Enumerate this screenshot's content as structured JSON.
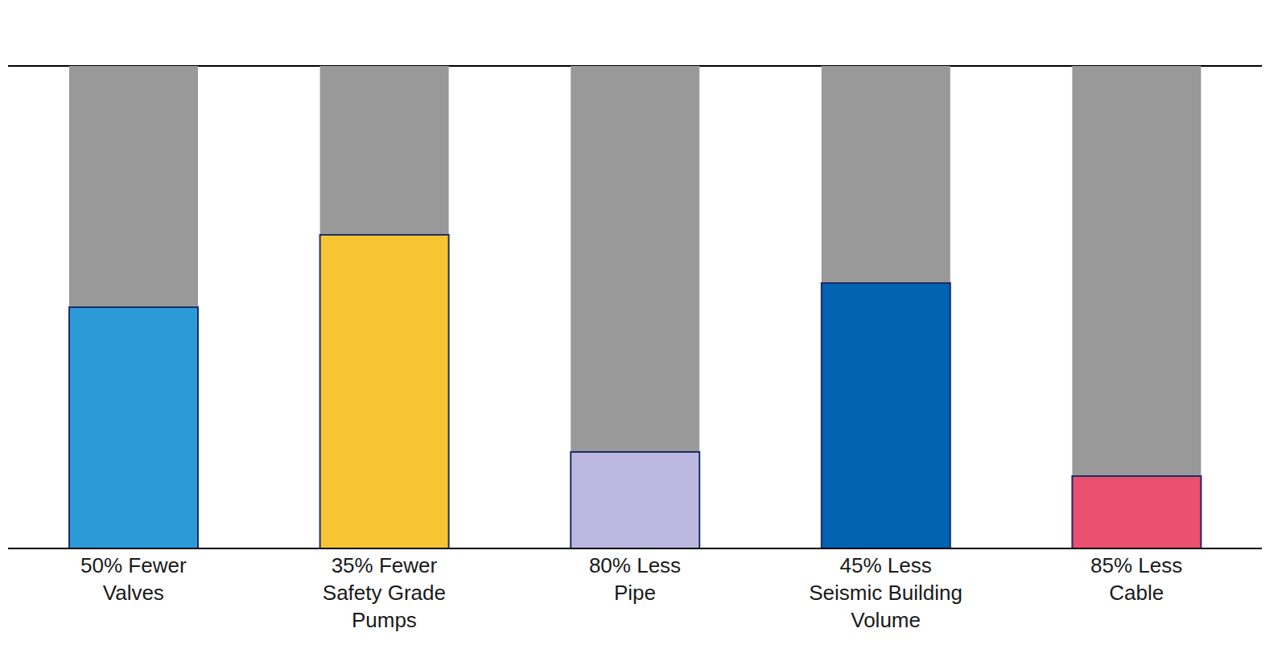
{
  "chart_data": {
    "type": "bar",
    "categories": [
      "50% Fewer Valves",
      "35% Fewer Safety Grade Pumps",
      "80% Less Pipe",
      "45% Less Seismic Building Volume",
      "85% Less Cable"
    ],
    "series": [
      {
        "color": "#999999",
        "values": [
          100,
          100,
          100,
          100,
          100
        ]
      },
      {
        "colors": [
          "#2b9ad6",
          "#f6c531",
          "#bdb8e0",
          "#0062b0",
          "#ea4f70"
        ],
        "values": [
          50,
          65,
          20,
          55,
          15
        ]
      }
    ],
    "ylim": [
      0,
      100
    ],
    "yticks": [
      0,
      10,
      20,
      30,
      40,
      50,
      60,
      70,
      80,
      90,
      100
    ],
    "grid": true,
    "tick_labels": "x"
  }
}
